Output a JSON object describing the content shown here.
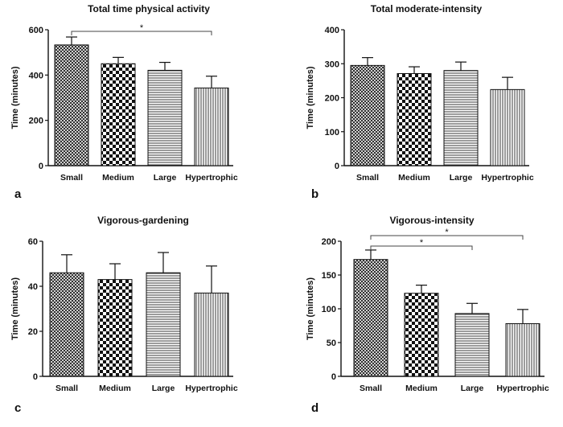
{
  "chart_data": [
    {
      "type": "bar",
      "panel_label": "a",
      "title": "Total time physical activity",
      "ylabel": "Time (minutes)",
      "categories": [
        "Small",
        "Medium",
        "Large",
        "Hypertrophic"
      ],
      "values": [
        533,
        450,
        421,
        343
      ],
      "errors": [
        35,
        28,
        35,
        52
      ],
      "ylim": [
        0,
        600
      ],
      "yticks": [
        "0",
        "200",
        "400",
        "600"
      ],
      "significance": [
        {
          "from": 0,
          "to": 3,
          "label": "*"
        }
      ]
    },
    {
      "type": "bar",
      "panel_label": "b",
      "title": "Total moderate-intensity",
      "ylabel": "Time (minutes)",
      "categories": [
        "Small",
        "Medium",
        "Large",
        "Hypertrophic"
      ],
      "values": [
        295,
        271,
        280,
        224
      ],
      "errors": [
        23,
        20,
        25,
        36
      ],
      "ylim": [
        0,
        400
      ],
      "yticks": [
        "0",
        "100",
        "200",
        "300",
        "400"
      ],
      "significance": []
    },
    {
      "type": "bar",
      "panel_label": "c",
      "title": "Vigorous-gardening",
      "ylabel": "Time (minutes)",
      "categories": [
        "Small",
        "Medium",
        "Large",
        "Hypertrophic"
      ],
      "values": [
        46,
        43,
        46,
        37
      ],
      "errors": [
        8,
        7,
        9,
        12
      ],
      "ylim": [
        0,
        60
      ],
      "yticks": [
        "0",
        "20",
        "40",
        "60"
      ],
      "significance": []
    },
    {
      "type": "bar",
      "panel_label": "d",
      "title": "Vigorous-intensity",
      "ylabel": "Time (minutes)",
      "categories": [
        "Small",
        "Medium",
        "Large",
        "Hypertrophic"
      ],
      "values": [
        173,
        123,
        93,
        78
      ],
      "errors": [
        14,
        12,
        15,
        21
      ],
      "ylim": [
        0,
        200
      ],
      "yticks": [
        "0",
        "50",
        "100",
        "150",
        "200"
      ],
      "significance": [
        {
          "from": 0,
          "to": 2,
          "label": "*"
        },
        {
          "from": 0,
          "to": 3,
          "label": "*"
        }
      ]
    }
  ]
}
